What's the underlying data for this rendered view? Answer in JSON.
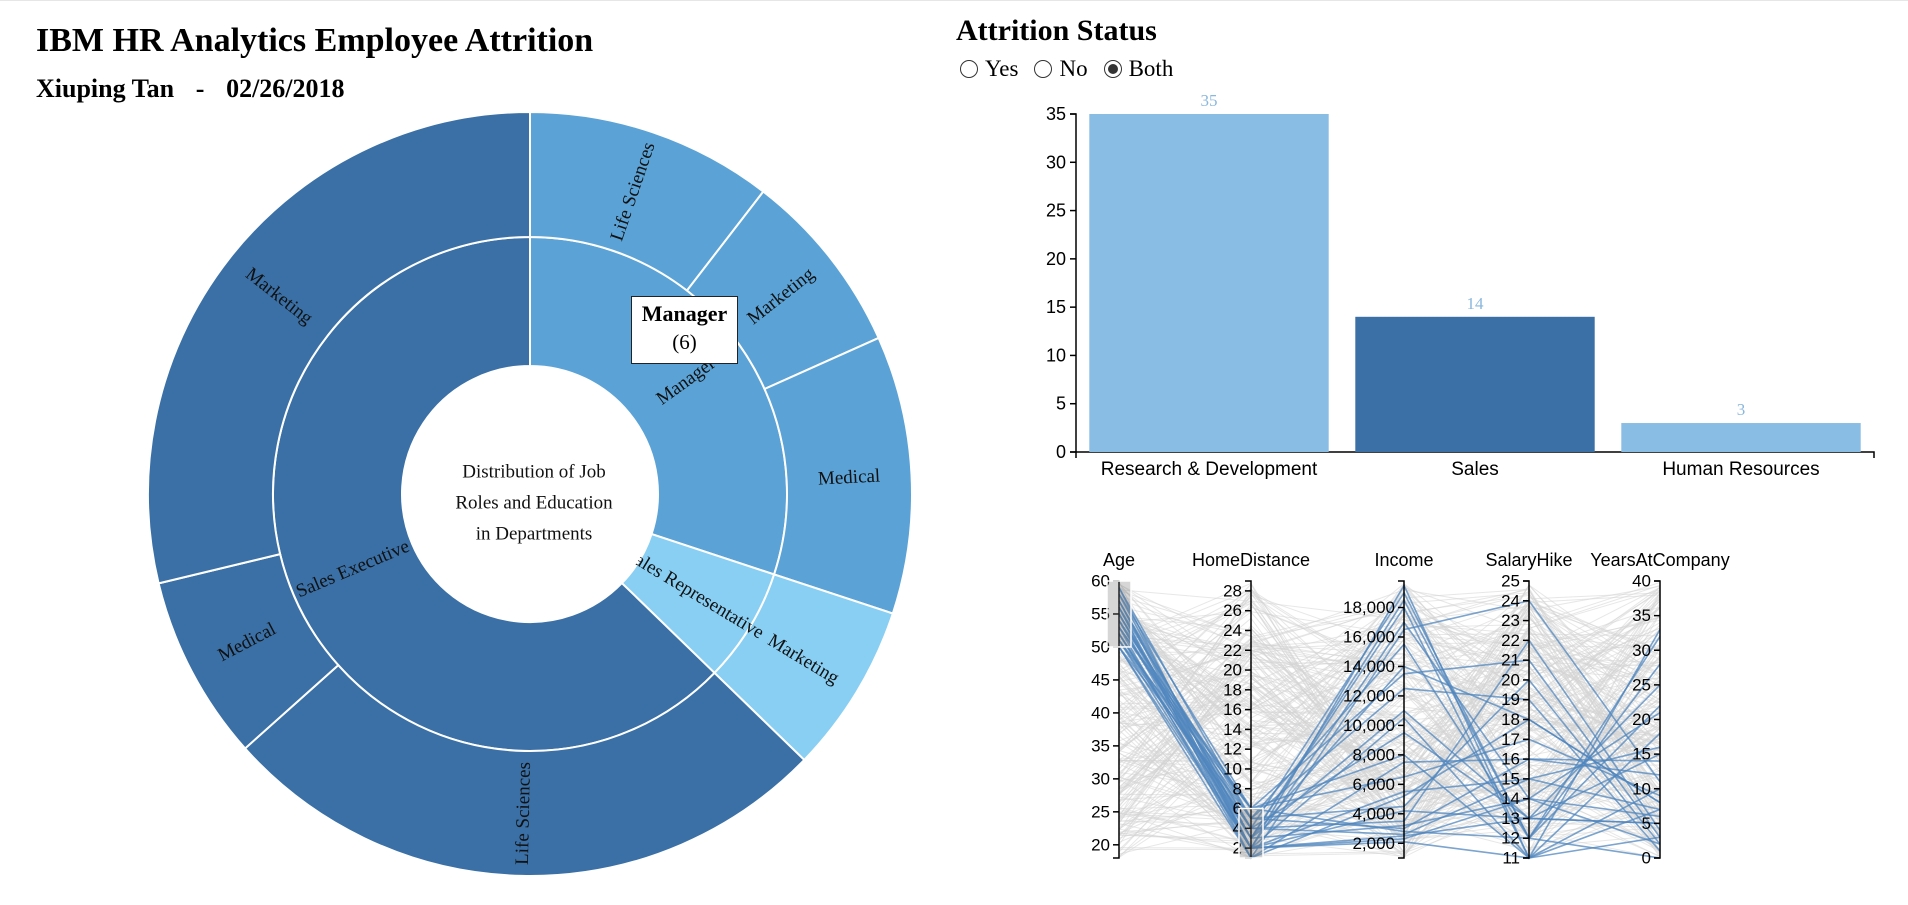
{
  "title": "IBM HR Analytics Employee Attrition",
  "author": "Xiuping Tan",
  "separator": "-",
  "date": "02/26/2018",
  "attrition": {
    "title": "Attrition Status",
    "options": [
      "Yes",
      "No",
      "Both"
    ],
    "selected": "Both"
  },
  "tooltip": {
    "name": "Manager",
    "count": "(6)"
  },
  "colors": {
    "dark": "#3a70a6",
    "mid": "#5ba3d6",
    "light": "#89cff3",
    "bar_light": "#8abde3",
    "bar_dark": "#3a70a6",
    "bar_label": "#8ab7dd",
    "pc_highlight": "#4f86be",
    "pc_background": "#d4d4d4"
  },
  "chart_data": [
    {
      "type": "sunburst",
      "center_label": [
        "Distribution of Job",
        "Roles and Education",
        "in Departments"
      ],
      "children": [
        {
          "name": "Sales Executive",
          "color": "dark",
          "children": [
            {
              "name": "Marketing",
              "value": 22
            },
            {
              "name": "Medical",
              "value": 6
            },
            {
              "name": "Life Sciences",
              "value": 20
            }
          ]
        },
        {
          "name": "Manager",
          "color": "mid",
          "children": [
            {
              "name": "Life Sciences",
              "value": 8
            },
            {
              "name": "Marketing",
              "value": 6
            },
            {
              "name": "Medical",
              "value": 9
            }
          ]
        },
        {
          "name": "Sales Representative",
          "color": "light",
          "children": [
            {
              "name": "Marketing",
              "value": 5.5
            }
          ]
        }
      ]
    },
    {
      "type": "bar",
      "categories": [
        "Research & Development",
        "Sales",
        "Human Resources"
      ],
      "values": [
        35,
        14,
        3
      ],
      "colors": [
        "bar_light",
        "bar_dark",
        "bar_light"
      ],
      "ylim": [
        0,
        35
      ],
      "yticks": [
        0,
        5,
        10,
        15,
        20,
        25,
        30,
        35
      ]
    },
    {
      "type": "parallel_coordinates",
      "axes": [
        {
          "name": "Age",
          "domain": [
            18,
            60
          ],
          "ticks": [
            20,
            25,
            30,
            35,
            40,
            45,
            50,
            55,
            60
          ],
          "labels": [
            "20",
            "25",
            "30",
            "35",
            "40",
            "45",
            "50",
            "55",
            "60"
          ],
          "brush": [
            50,
            60
          ]
        },
        {
          "name": "HomeDistance",
          "domain": [
            1,
            29
          ],
          "ticks": [
            2,
            4,
            6,
            8,
            10,
            12,
            14,
            16,
            18,
            20,
            22,
            24,
            26,
            28
          ],
          "labels": [
            "2",
            "4",
            "6",
            "8",
            "10",
            "12",
            "14",
            "16",
            "18",
            "20",
            "22",
            "24",
            "26",
            "28"
          ],
          "brush": [
            1,
            6
          ]
        },
        {
          "name": "Income",
          "domain": [
            1000,
            19800
          ],
          "ticks": [
            2000,
            4000,
            6000,
            8000,
            10000,
            12000,
            14000,
            16000,
            18000
          ],
          "labels": [
            "2,000",
            "4,000",
            "6,000",
            "8,000",
            "10,000",
            "12,000",
            "14,000",
            "16,000",
            "18,000"
          ]
        },
        {
          "name": "SalaryHike",
          "domain": [
            11,
            25
          ],
          "ticks": [
            11,
            12,
            13,
            14,
            15,
            16,
            17,
            18,
            19,
            20,
            21,
            22,
            23,
            24,
            25
          ],
          "labels": [
            "11",
            "12",
            "13",
            "14",
            "15",
            "16",
            "17",
            "18",
            "19",
            "20",
            "21",
            "22",
            "23",
            "24",
            "25"
          ]
        },
        {
          "name": "YearsAtCompany",
          "domain": [
            0,
            40
          ],
          "ticks": [
            0,
            5,
            10,
            15,
            20,
            25,
            30,
            35,
            40
          ],
          "labels": [
            "0",
            "5",
            "10",
            "15",
            "20",
            "25",
            "30",
            "35",
            "40"
          ]
        }
      ],
      "highlighted": [
        [
          59,
          2,
          2500,
          13,
          5
        ],
        [
          58,
          3,
          18500,
          12,
          32
        ],
        [
          57,
          2,
          17000,
          14,
          21
        ],
        [
          56,
          5,
          3000,
          16,
          12
        ],
        [
          55,
          2,
          2100,
          11,
          3
        ],
        [
          55,
          4,
          19000,
          12,
          28
        ],
        [
          54,
          3,
          14000,
          18,
          8
        ],
        [
          54,
          2,
          5500,
          15,
          7
        ],
        [
          53,
          6,
          8000,
          11,
          10
        ],
        [
          53,
          5,
          4500,
          20,
          2
        ],
        [
          52,
          3,
          11000,
          13,
          15
        ],
        [
          52,
          2,
          2300,
          14,
          6
        ],
        [
          51,
          6,
          6500,
          17,
          9
        ],
        [
          51,
          4,
          3500,
          22,
          4
        ],
        [
          50,
          2,
          19500,
          11,
          18
        ],
        [
          50,
          5,
          12500,
          19,
          1
        ],
        [
          57,
          4,
          9500,
          13,
          25
        ],
        [
          56,
          1,
          16500,
          24,
          11
        ],
        [
          58,
          6,
          2800,
          12,
          0
        ],
        [
          53,
          1,
          7500,
          16,
          14
        ],
        [
          55,
          3,
          18000,
          11,
          33
        ],
        [
          51,
          2,
          4200,
          13,
          5
        ],
        [
          54,
          6,
          13500,
          21,
          3
        ],
        [
          52,
          4,
          2600,
          15,
          16
        ],
        [
          59,
          5,
          15500,
          12,
          22
        ],
        [
          50,
          1,
          5200,
          18,
          8
        ],
        [
          57,
          3,
          3200,
          14,
          2
        ],
        [
          56,
          2,
          10500,
          11,
          7
        ]
      ]
    }
  ]
}
